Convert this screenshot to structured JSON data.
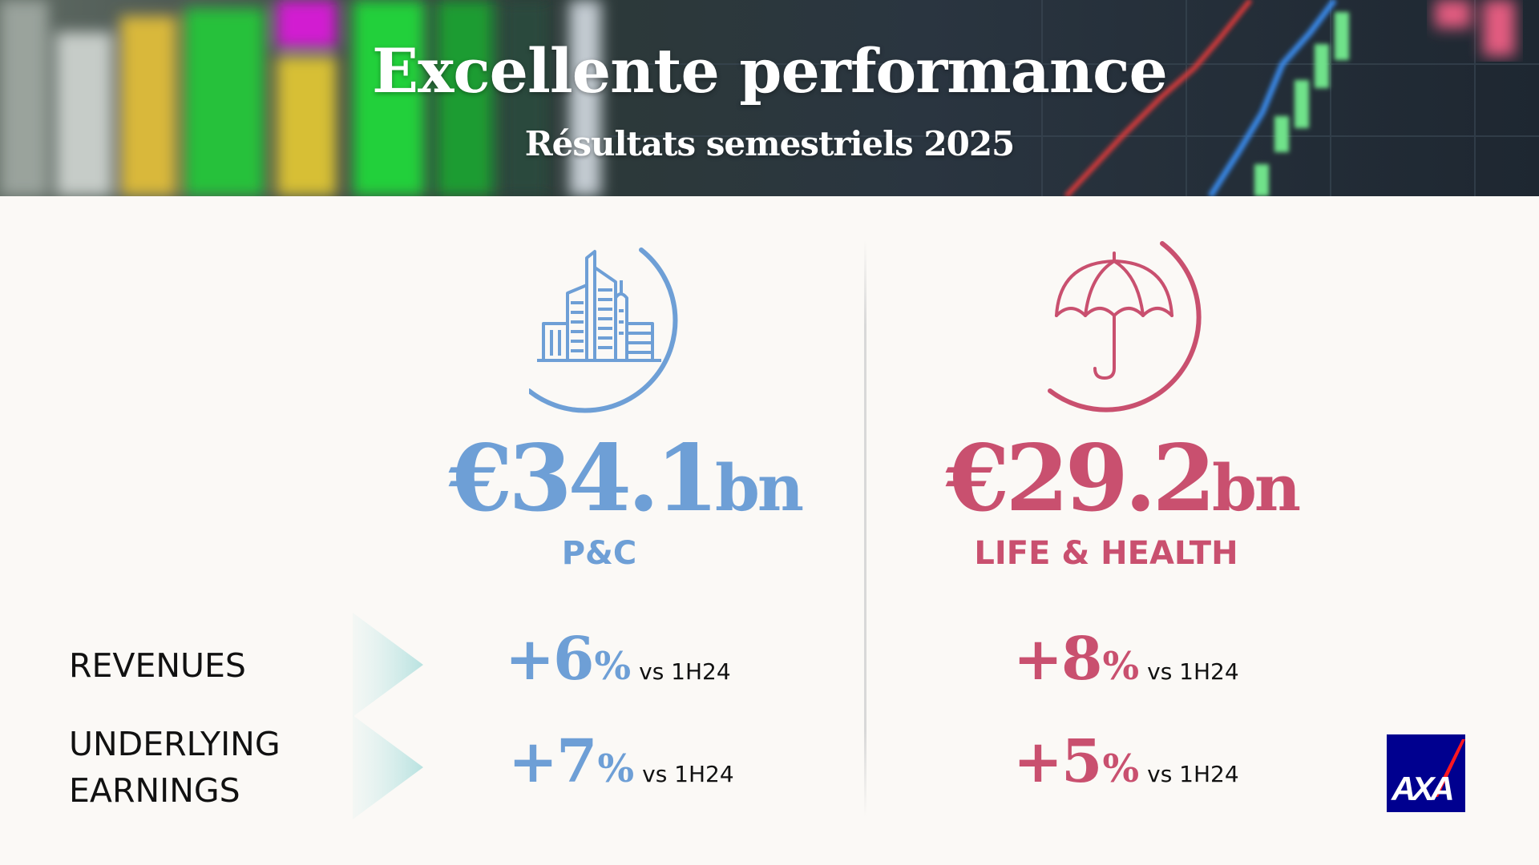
{
  "header": {
    "title": "Excellente performance",
    "subtitle": "Résultats semestriels 2025"
  },
  "segments": [
    {
      "amount_main": "€34.1",
      "amount_unit": "bn",
      "label": "P&C",
      "icon": "city-buildings-icon",
      "color": "#6e9fd6"
    },
    {
      "amount_main": "€29.2",
      "amount_unit": "bn",
      "label": "LIFE & HEALTH",
      "icon": "umbrella-icon",
      "color": "#c9506f"
    }
  ],
  "rows": [
    {
      "label": "REVENUES",
      "values": [
        {
          "sign": "+",
          "value": "6",
          "pct": "%",
          "comparison": "vs 1H24"
        },
        {
          "sign": "+",
          "value": "8",
          "pct": "%",
          "comparison": "vs 1H24"
        }
      ]
    },
    {
      "label_lines": [
        "UNDERLYING",
        "EARNINGS"
      ],
      "values": [
        {
          "sign": "+",
          "value": "7",
          "pct": "%",
          "comparison": "vs 1H24"
        },
        {
          "sign": "+",
          "value": "5",
          "pct": "%",
          "comparison": "vs 1H24"
        }
      ]
    }
  ],
  "logo": {
    "text": "AXA",
    "bg_color": "#00008f",
    "accent_color": "#ff1721"
  }
}
